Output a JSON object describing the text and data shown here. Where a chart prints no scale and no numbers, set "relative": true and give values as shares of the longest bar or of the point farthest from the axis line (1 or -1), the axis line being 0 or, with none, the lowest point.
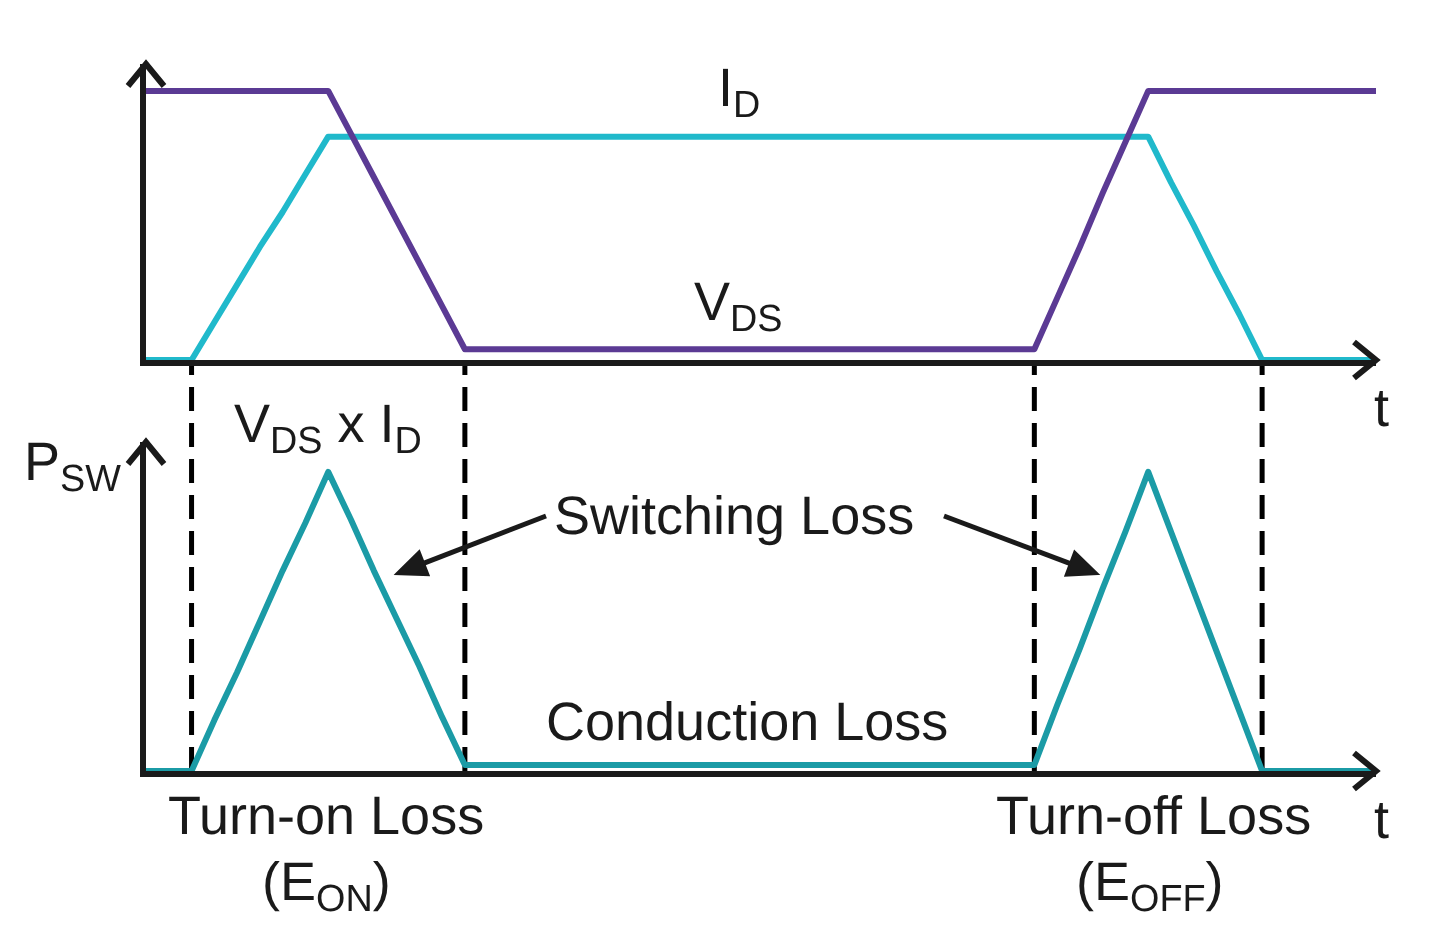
{
  "chart_data": [
    {
      "type": "line",
      "relative": true,
      "xlabel": "t",
      "categories": [
        null,
        null,
        null,
        null,
        null,
        null,
        null,
        null,
        null,
        null,
        null,
        null,
        null,
        null,
        null,
        null,
        null,
        null,
        null,
        null,
        null,
        null,
        null,
        null,
        null,
        null,
        null,
        null,
        null,
        null,
        null,
        null,
        null,
        null,
        null,
        null,
        null,
        null,
        null,
        null,
        null,
        null,
        null,
        null,
        null,
        null,
        null,
        null,
        null,
        null,
        null,
        null,
        null,
        null,
        null
      ],
      "series": [
        {
          "name": "I$_{D}$",
          "color": "#20b9cb",
          "values": [
            0,
            0,
            0,
            0.14,
            0.28,
            0.42,
            0.55,
            0.69,
            0.83,
            0.83,
            0.83,
            0.83,
            0.83,
            0.83,
            0.83,
            0.83,
            0.83,
            0.83,
            0.83,
            0.83,
            0.83,
            0.83,
            0.83,
            0.83,
            0.83,
            0.83,
            0.83,
            0.83,
            0.83,
            0.83,
            0.83,
            0.83,
            0.83,
            0.83,
            0.83,
            0.83,
            0.83,
            0.83,
            0.83,
            0.83,
            0.83,
            0.83,
            0.83,
            0.83,
            0.83,
            0.66,
            0.5,
            0.33,
            0.17,
            0,
            0,
            0,
            0,
            0,
            0
          ]
        },
        {
          "name": "V$_{DS}$",
          "color": "#5b3a94",
          "values": [
            1,
            1,
            1,
            1,
            1,
            1,
            1,
            1,
            1,
            0.84,
            0.68,
            0.52,
            0.36,
            0.2,
            0.04,
            0.04,
            0.04,
            0.04,
            0.04,
            0.04,
            0.04,
            0.04,
            0.04,
            0.04,
            0.04,
            0.04,
            0.04,
            0.04,
            0.04,
            0.04,
            0.04,
            0.04,
            0.04,
            0.04,
            0.04,
            0.04,
            0.04,
            0.04,
            0.04,
            0.04,
            0.23,
            0.42,
            0.62,
            0.81,
            1,
            1,
            1,
            1,
            1,
            1,
            1,
            1,
            1,
            1,
            1
          ]
        }
      ]
    },
    {
      "type": "line",
      "relative": true,
      "xlabel": "t",
      "ylabel": "P$_{SW}$",
      "grid": "x",
      "categories": [
        null,
        null,
        null,
        null,
        null,
        null,
        null,
        null,
        null,
        null,
        null,
        null,
        null,
        null,
        null,
        null,
        null,
        null,
        null,
        null,
        null,
        null,
        null,
        null,
        null,
        null,
        null,
        null,
        null,
        null,
        null,
        null,
        null,
        null,
        null,
        null,
        null,
        null,
        null,
        null,
        null,
        null,
        null,
        null,
        null,
        null,
        null,
        null,
        null,
        null,
        null,
        null,
        null,
        null,
        null
      ],
      "series": [
        {
          "name": "V$_{DS}$ x I$_{D}$",
          "color": "#1b9ba6",
          "values": [
            0,
            0,
            0,
            0.17,
            0.33,
            0.5,
            0.67,
            0.83,
            1,
            0.84,
            0.67,
            0.51,
            0.35,
            0.18,
            0.02,
            0.02,
            0.02,
            0.02,
            0.02,
            0.02,
            0.02,
            0.02,
            0.02,
            0.02,
            0.02,
            0.02,
            0.02,
            0.02,
            0.02,
            0.02,
            0.02,
            0.02,
            0.02,
            0.02,
            0.02,
            0.02,
            0.02,
            0.02,
            0.02,
            0.02,
            0.22,
            0.41,
            0.61,
            0.8,
            1,
            0.8,
            0.6,
            0.4,
            0.2,
            0,
            0,
            0,
            0,
            0,
            0
          ]
        }
      ],
      "annotations": [
        "Switching Loss",
        "Conduction Loss",
        "Turn-on Loss",
        "(E$_{ON}$)",
        "Turn-off Loss",
        "(E$_{OFF}$)"
      ]
    }
  ]
}
